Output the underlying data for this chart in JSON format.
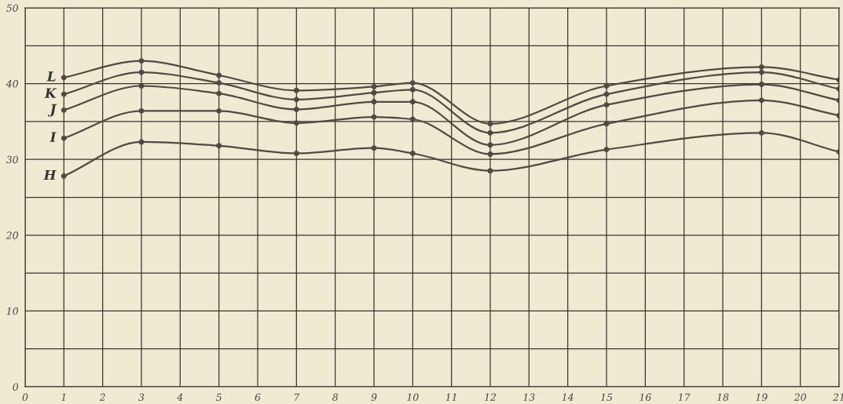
{
  "chart_data": {
    "type": "line",
    "xlim": [
      0,
      21
    ],
    "ylim": [
      0,
      50
    ],
    "xticks": [
      0,
      1,
      2,
      3,
      4,
      5,
      6,
      7,
      8,
      9,
      10,
      11,
      12,
      13,
      14,
      15,
      16,
      17,
      18,
      19,
      20,
      21
    ],
    "yticks": [
      0,
      {
        "value": 5,
        "label": null
      },
      10,
      {
        "value": 15,
        "label": null
      },
      20,
      {
        "value": 25,
        "label": null
      },
      30,
      {
        "value": 35,
        "label": null
      },
      40,
      {
        "value": 45,
        "label": null
      },
      50
    ],
    "grid": true,
    "marker": "circle",
    "line_style": "solid",
    "legend": false,
    "series": [
      {
        "name": "L",
        "color": "#4f4a44",
        "x": [
          1,
          3,
          5,
          7,
          9,
          10,
          12,
          15,
          19,
          21
        ],
        "values": [
          40.8,
          43.0,
          41.1,
          39.1,
          39.6,
          40.1,
          34.7,
          39.7,
          42.2,
          40.5
        ]
      },
      {
        "name": "K",
        "color": "#4f4a44",
        "x": [
          1,
          3,
          5,
          7,
          9,
          10,
          12,
          15,
          19,
          21
        ],
        "values": [
          38.6,
          41.5,
          40.1,
          37.9,
          38.8,
          39.2,
          33.5,
          38.6,
          41.5,
          39.3
        ]
      },
      {
        "name": "J",
        "color": "#4f4a44",
        "x": [
          1,
          3,
          5,
          7,
          9,
          10,
          12,
          15,
          19,
          21
        ],
        "values": [
          36.5,
          39.7,
          38.7,
          36.6,
          37.6,
          37.6,
          31.9,
          37.2,
          39.9,
          37.8
        ]
      },
      {
        "name": "I",
        "color": "#4f4a44",
        "x": [
          1,
          3,
          5,
          7,
          9,
          10,
          12,
          15,
          19,
          21
        ],
        "values": [
          32.8,
          36.4,
          36.4,
          34.8,
          35.6,
          35.3,
          30.7,
          34.7,
          37.8,
          35.8
        ]
      },
      {
        "name": "H",
        "color": "#4f4a44",
        "x": [
          1,
          3,
          5,
          7,
          9,
          10,
          12,
          15,
          19,
          21
        ],
        "values": [
          27.8,
          32.3,
          31.8,
          30.8,
          31.5,
          30.8,
          28.5,
          31.3,
          33.5,
          31.0
        ]
      }
    ]
  }
}
